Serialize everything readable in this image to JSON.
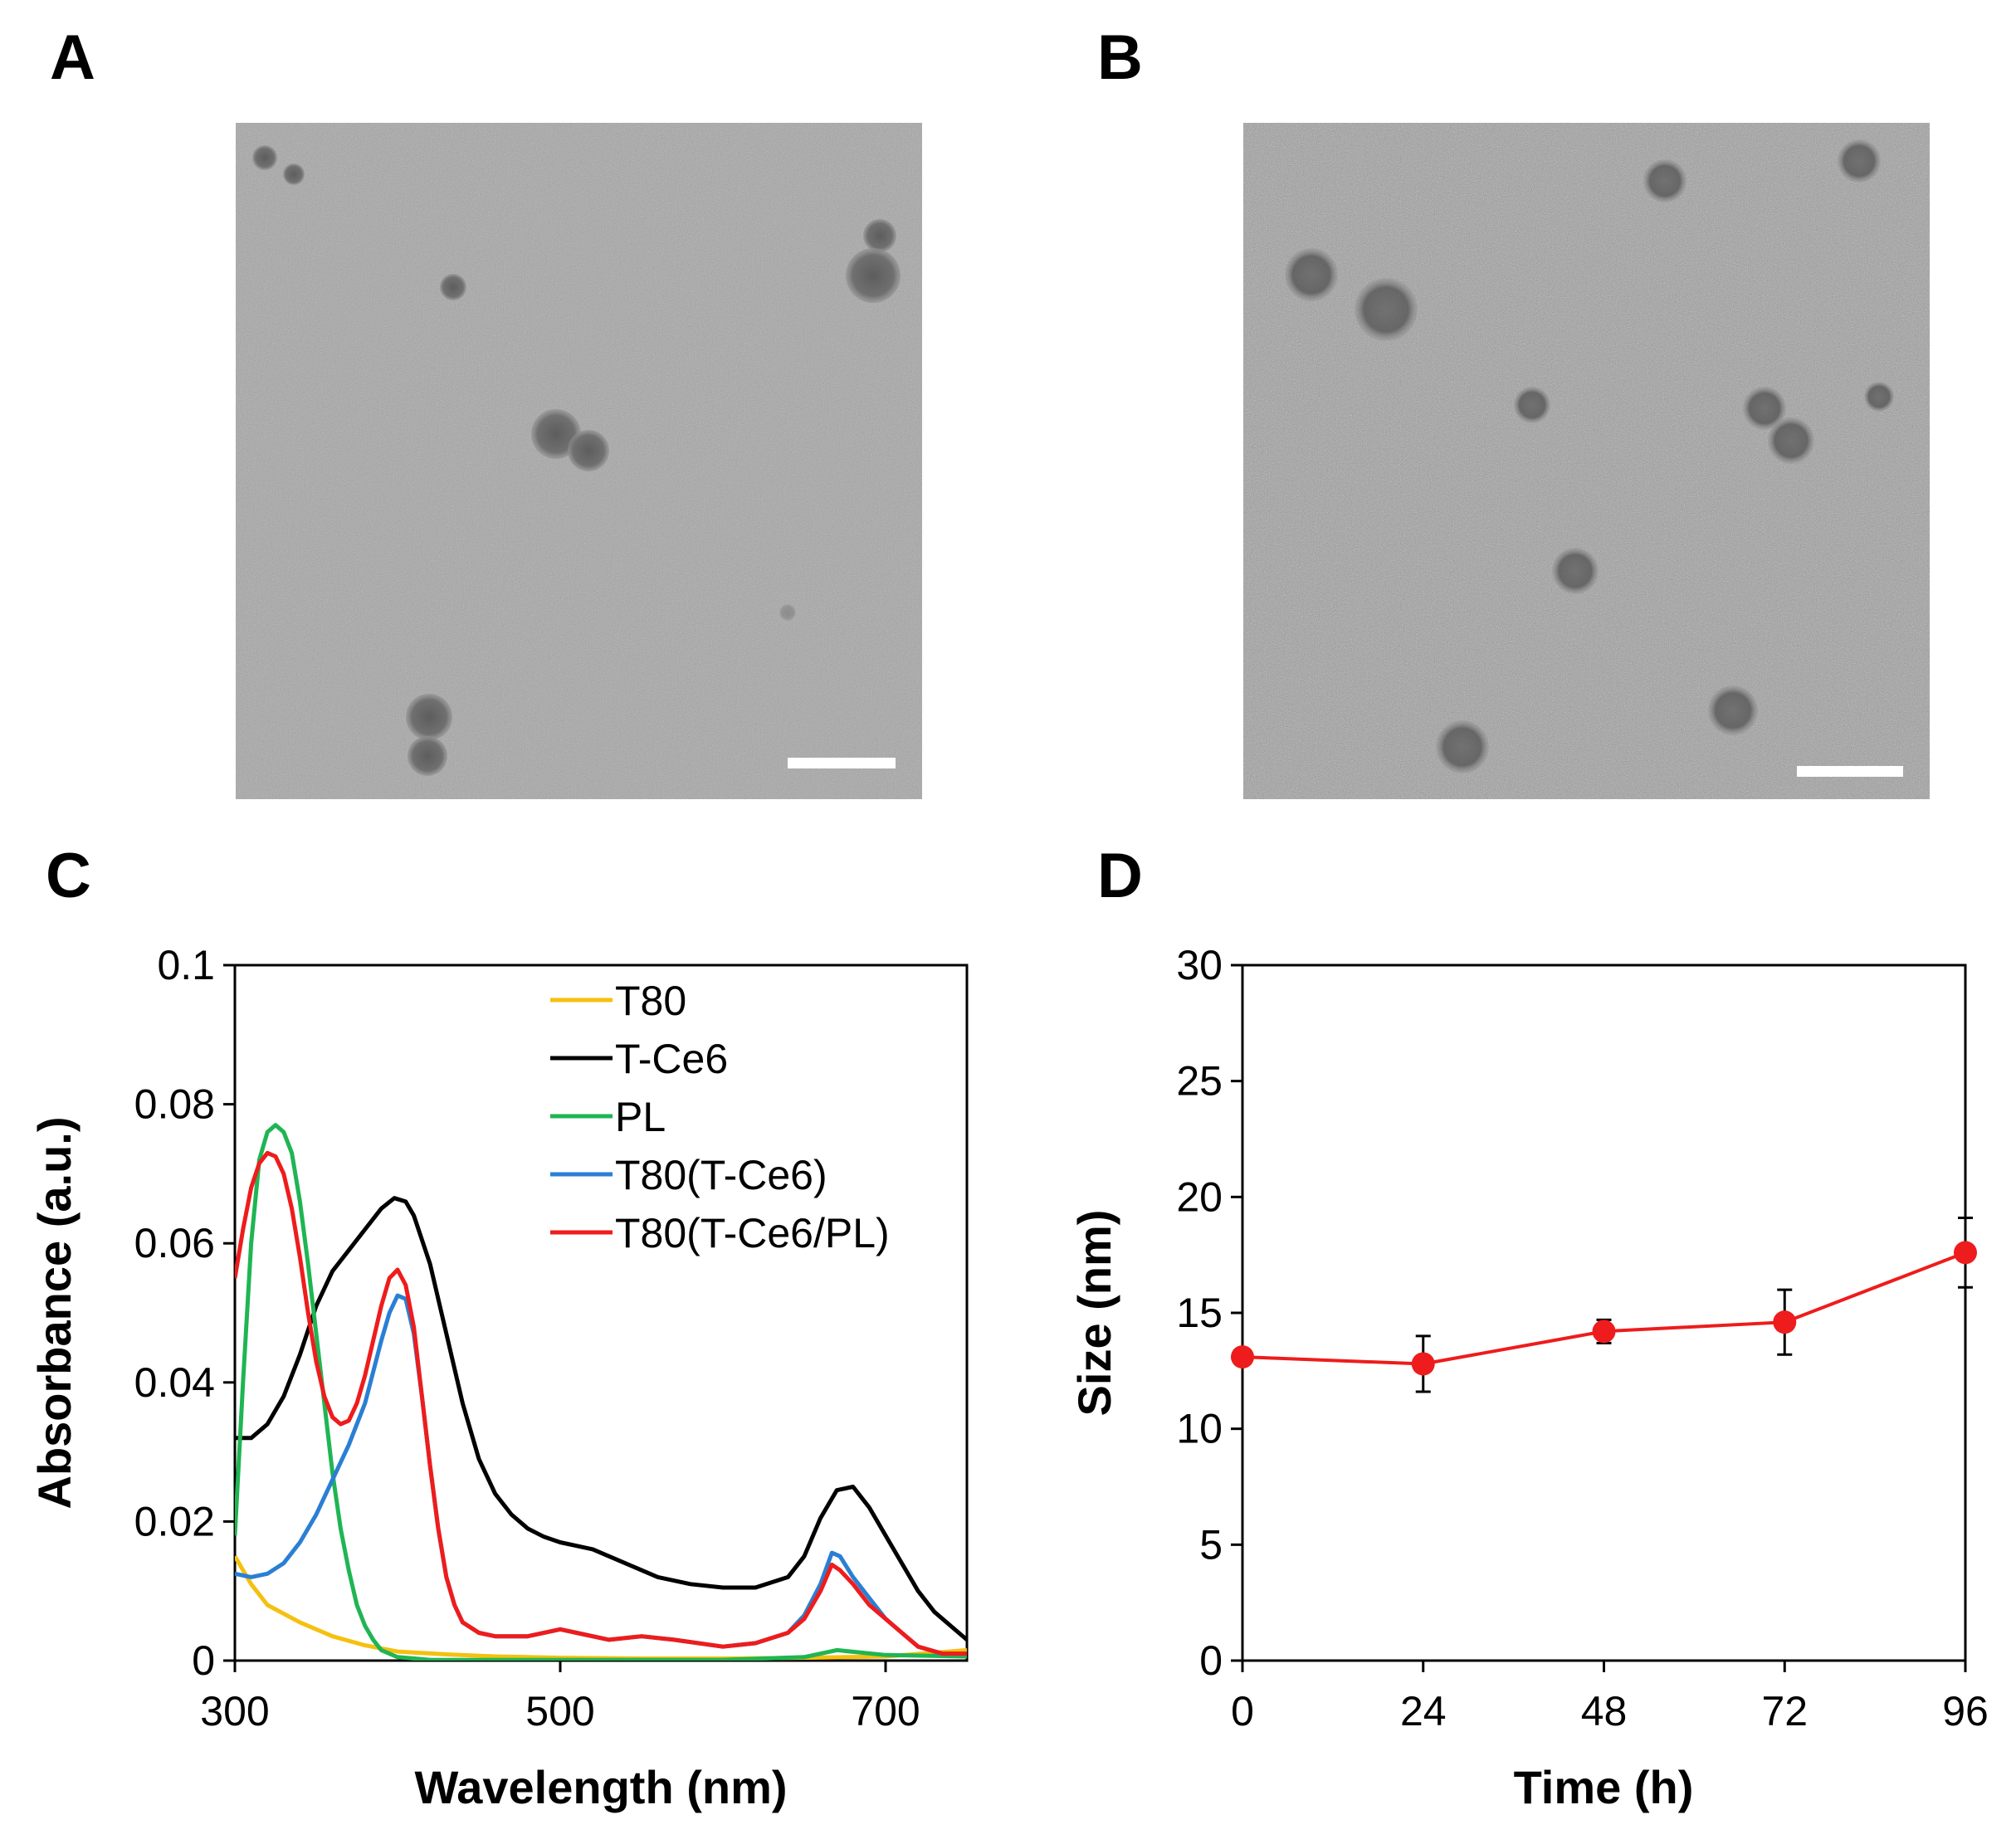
{
  "panels": {
    "a": {
      "letter": "A"
    },
    "b": {
      "letter": "B"
    },
    "c": {
      "letter": "C"
    },
    "d": {
      "letter": "D"
    }
  },
  "colors": {
    "T80": "#f5c010",
    "T-Ce6": "#000000",
    "PL": "#1fb553",
    "T80(T-Ce6)": "#2a7fd4",
    "T80(T-Ce6/PL)": "#ee1c1c",
    "size_series": "#ee1c1c"
  },
  "chart_data": [
    {
      "type": "line",
      "panel": "C",
      "title": "",
      "xlabel": "Wavelength (nm)",
      "ylabel": "Absorbance (a.u.)",
      "xlim": [
        300,
        750
      ],
      "ylim": [
        0,
        0.1
      ],
      "xticks": [
        300,
        500,
        700
      ],
      "yticks": [
        0,
        0.02,
        0.04,
        0.06,
        0.08,
        0.1
      ],
      "ytick_labels": [
        "0",
        "0.02",
        "0.04",
        "0.06",
        "0.08",
        "0.1"
      ],
      "legend_position": "top-center",
      "series": [
        {
          "name": "T80",
          "x": [
            300,
            310,
            320,
            340,
            360,
            380,
            400,
            430,
            460,
            500,
            550,
            600,
            650,
            700,
            750
          ],
          "y": [
            0.015,
            0.011,
            0.008,
            0.0055,
            0.0035,
            0.0022,
            0.0013,
            0.0009,
            0.0006,
            0.0004,
            0.0003,
            0.0003,
            0.0004,
            0.0006,
            0.0015
          ]
        },
        {
          "name": "T-Ce6",
          "x": [
            300,
            310,
            320,
            330,
            340,
            350,
            360,
            370,
            380,
            390,
            398,
            405,
            410,
            420,
            430,
            440,
            450,
            460,
            470,
            480,
            490,
            500,
            510,
            520,
            540,
            560,
            580,
            600,
            620,
            640,
            650,
            660,
            670,
            680,
            690,
            700,
            710,
            720,
            730,
            740,
            750
          ],
          "y": [
            0.032,
            0.032,
            0.034,
            0.038,
            0.044,
            0.051,
            0.056,
            0.059,
            0.062,
            0.065,
            0.0665,
            0.066,
            0.064,
            0.057,
            0.047,
            0.037,
            0.029,
            0.024,
            0.021,
            0.019,
            0.0178,
            0.017,
            0.0165,
            0.016,
            0.014,
            0.012,
            0.011,
            0.0105,
            0.0105,
            0.012,
            0.015,
            0.0205,
            0.0245,
            0.025,
            0.022,
            0.018,
            0.014,
            0.01,
            0.007,
            0.005,
            0.003
          ]
        },
        {
          "name": "PL",
          "x": [
            300,
            305,
            310,
            315,
            320,
            325,
            330,
            335,
            340,
            345,
            350,
            355,
            360,
            365,
            370,
            375,
            380,
            385,
            390,
            400,
            420,
            500,
            600,
            650,
            670,
            700,
            750
          ],
          "y": [
            0.018,
            0.04,
            0.06,
            0.072,
            0.076,
            0.077,
            0.076,
            0.073,
            0.066,
            0.057,
            0.047,
            0.037,
            0.027,
            0.019,
            0.013,
            0.008,
            0.005,
            0.003,
            0.0015,
            0.0005,
            0.0001,
            0.0001,
            0.0001,
            0.0005,
            0.0015,
            0.0008,
            0.0006
          ]
        },
        {
          "name": "T80(T-Ce6)",
          "x": [
            300,
            310,
            320,
            330,
            340,
            350,
            360,
            370,
            380,
            390,
            395,
            400,
            405,
            410,
            415,
            420,
            425,
            430,
            435,
            440,
            450,
            460,
            480,
            500,
            510,
            530,
            550,
            570,
            600,
            620,
            640,
            650,
            660,
            667,
            672,
            680,
            690,
            700,
            710,
            720,
            735,
            750
          ],
          "y": [
            0.0125,
            0.012,
            0.0125,
            0.014,
            0.017,
            0.021,
            0.026,
            0.031,
            0.037,
            0.046,
            0.05,
            0.0525,
            0.052,
            0.047,
            0.038,
            0.028,
            0.019,
            0.012,
            0.008,
            0.0055,
            0.004,
            0.0035,
            0.0035,
            0.0045,
            0.004,
            0.003,
            0.0035,
            0.003,
            0.002,
            0.0025,
            0.004,
            0.0065,
            0.011,
            0.0155,
            0.015,
            0.012,
            0.009,
            0.006,
            0.004,
            0.002,
            0.001,
            0.001
          ]
        },
        {
          "name": "T80(T-Ce6/PL)",
          "x": [
            300,
            305,
            310,
            315,
            320,
            325,
            330,
            335,
            340,
            345,
            350,
            355,
            360,
            365,
            370,
            375,
            380,
            385,
            390,
            395,
            400,
            405,
            410,
            415,
            420,
            425,
            430,
            435,
            440,
            450,
            460,
            480,
            500,
            510,
            530,
            550,
            570,
            600,
            620,
            640,
            650,
            660,
            667,
            672,
            680,
            690,
            700,
            710,
            720,
            735,
            750
          ],
          "y": [
            0.055,
            0.062,
            0.068,
            0.0715,
            0.073,
            0.0725,
            0.07,
            0.065,
            0.058,
            0.05,
            0.043,
            0.038,
            0.035,
            0.034,
            0.0345,
            0.037,
            0.041,
            0.046,
            0.051,
            0.055,
            0.0562,
            0.054,
            0.048,
            0.038,
            0.028,
            0.019,
            0.012,
            0.008,
            0.0055,
            0.004,
            0.0035,
            0.0035,
            0.0045,
            0.004,
            0.003,
            0.0035,
            0.003,
            0.002,
            0.0025,
            0.004,
            0.006,
            0.01,
            0.0138,
            0.013,
            0.011,
            0.008,
            0.006,
            0.004,
            0.002,
            0.001,
            0.001
          ]
        }
      ]
    },
    {
      "type": "line",
      "panel": "D",
      "title": "",
      "xlabel": "Time (h)",
      "ylabel": "Size (nm)",
      "xlim": [
        0,
        96
      ],
      "ylim": [
        0,
        30
      ],
      "xticks": [
        0,
        24,
        48,
        72,
        96
      ],
      "yticks": [
        0,
        5,
        10,
        15,
        20,
        25,
        30
      ],
      "series": [
        {
          "name": "Size",
          "x": [
            0,
            24,
            48,
            72,
            96
          ],
          "y": [
            13.1,
            12.8,
            14.2,
            14.6,
            17.6
          ],
          "err": [
            0,
            1.2,
            0.5,
            1.4,
            1.5
          ]
        }
      ]
    }
  ]
}
